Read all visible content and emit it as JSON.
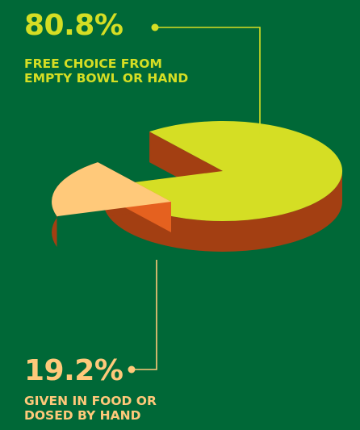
{
  "colors": {
    "background": "#006837",
    "slice_large_top": "#D5DE24",
    "slice_large_side": "#A33F12",
    "slice_small_top": "#FFC97A",
    "slice_small_side": "#E5611F",
    "leader_large": "#D5DE24",
    "leader_small": "#FFC97A",
    "label_large": "#D5DE24",
    "label_small": "#FFC97A"
  },
  "chart_data": {
    "type": "pie",
    "slices": [
      {
        "value": 80.8,
        "value_label": "80.8%",
        "label": "FREE CHOICE FROM EMPTY BOWL OR HAND"
      },
      {
        "value": 19.2,
        "value_label": "19.2%",
        "label": "GIVEN IN FOOD OR DOSED BY HAND"
      }
    ]
  },
  "labels": {
    "large": {
      "percent": "80.8%",
      "line1": "FREE CHOICE FROM",
      "line2": "EMPTY BOWL OR HAND"
    },
    "small": {
      "percent": "19.2%",
      "line1": "GIVEN IN FOOD OR",
      "line2": "DOSED BY HAND"
    }
  }
}
